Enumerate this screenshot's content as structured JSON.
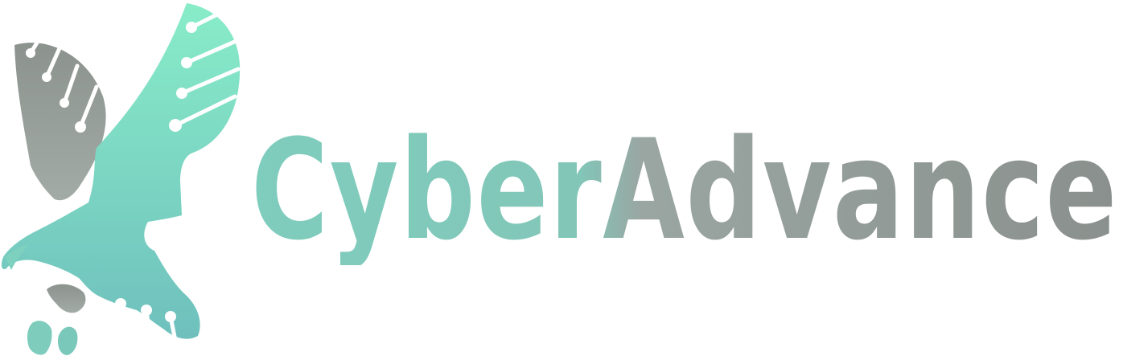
{
  "brand": {
    "name_part1": "Cyber",
    "name_part2": "Advance",
    "colors": {
      "teal_light": "#86e8c6",
      "teal_mid": "#7ecdbc",
      "teal_dark": "#6fbfbf",
      "gray_light": "#a6aeab",
      "gray_dark": "#868c89"
    }
  },
  "icons": {
    "mark": "circuit-eagle-icon"
  }
}
